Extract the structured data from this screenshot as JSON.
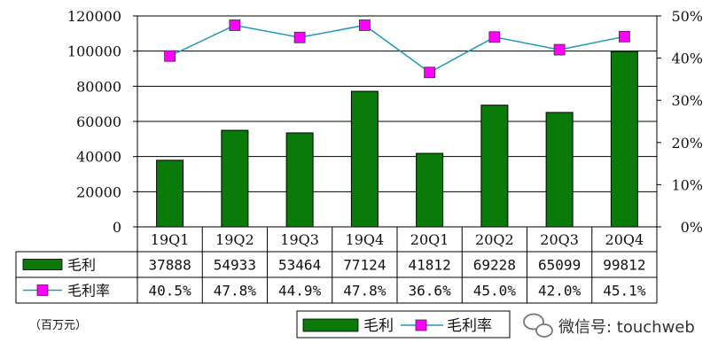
{
  "chart_data": {
    "type": "bar",
    "title": "",
    "categories": [
      "19Q1",
      "19Q2",
      "19Q3",
      "19Q4",
      "20Q1",
      "20Q2",
      "20Q3",
      "20Q4"
    ],
    "series": [
      {
        "name": "毛利",
        "type": "bar",
        "axis": "left",
        "color": "#0a7a0a",
        "values": [
          37888,
          54933,
          53464,
          77124,
          41812,
          69228,
          65099,
          99812
        ],
        "labels": [
          "37888",
          "54933",
          "53464",
          "77124",
          "41812",
          "69228",
          "65099",
          "99812"
        ]
      },
      {
        "name": "毛利率",
        "type": "line",
        "axis": "right",
        "color": "#ff00ff",
        "line_color": "#1f9ab8",
        "values": [
          40.5,
          47.8,
          44.9,
          47.8,
          36.6,
          45.0,
          42.0,
          45.1
        ],
        "labels": [
          "40.5%",
          "47.8%",
          "44.9%",
          "47.8%",
          "36.6%",
          "45.0%",
          "42.0%",
          "45.1%"
        ]
      }
    ],
    "y_left": {
      "ylim": [
        0,
        120000
      ],
      "ticks": [
        "0",
        "20000",
        "40000",
        "60000",
        "80000",
        "100000",
        "120000"
      ]
    },
    "y_right": {
      "ylim": [
        0,
        50
      ],
      "ticks": [
        "0%",
        "10%",
        "20%",
        "30%",
        "40%",
        "50%"
      ]
    },
    "grid": true,
    "legend": "bottom-center",
    "unit": "（百万元）"
  },
  "watermark": "微信号: touchweb"
}
